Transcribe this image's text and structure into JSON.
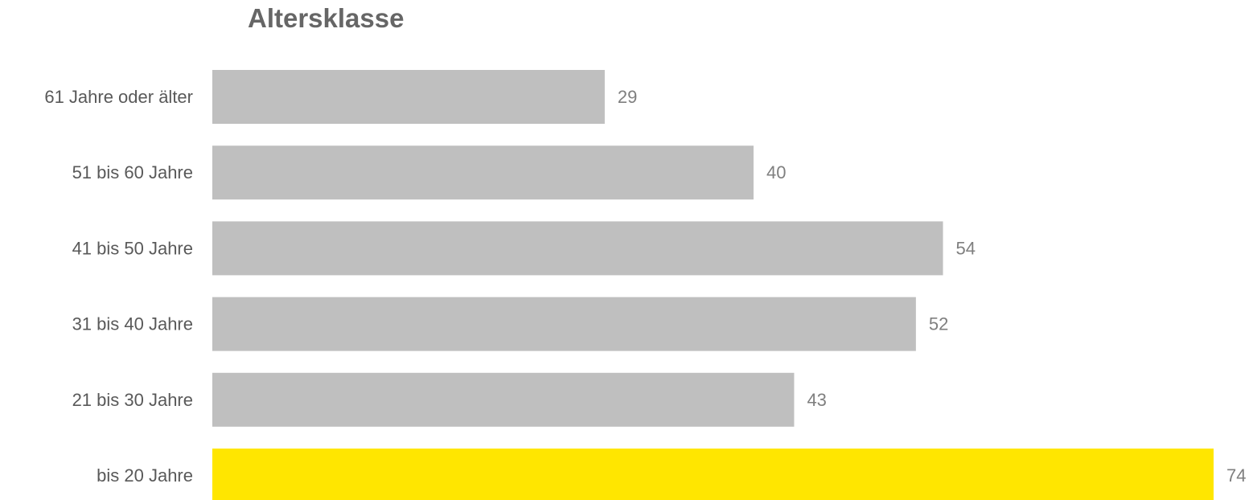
{
  "chart_data": {
    "type": "bar",
    "orientation": "horizontal",
    "title": "Altersklasse",
    "categories": [
      "61 Jahre oder älter",
      "51 bis 60 Jahre",
      "41 bis 50 Jahre",
      "31 bis 40 Jahre",
      "21 bis 30 Jahre",
      "bis 20 Jahre"
    ],
    "values": [
      29,
      40,
      54,
      52,
      43,
      74
    ],
    "colors": [
      "#bfbfbf",
      "#bfbfbf",
      "#bfbfbf",
      "#bfbfbf",
      "#bfbfbf",
      "#ffe600"
    ],
    "xlim": [
      0,
      74
    ],
    "grid": false,
    "xaxis_visible": false
  }
}
